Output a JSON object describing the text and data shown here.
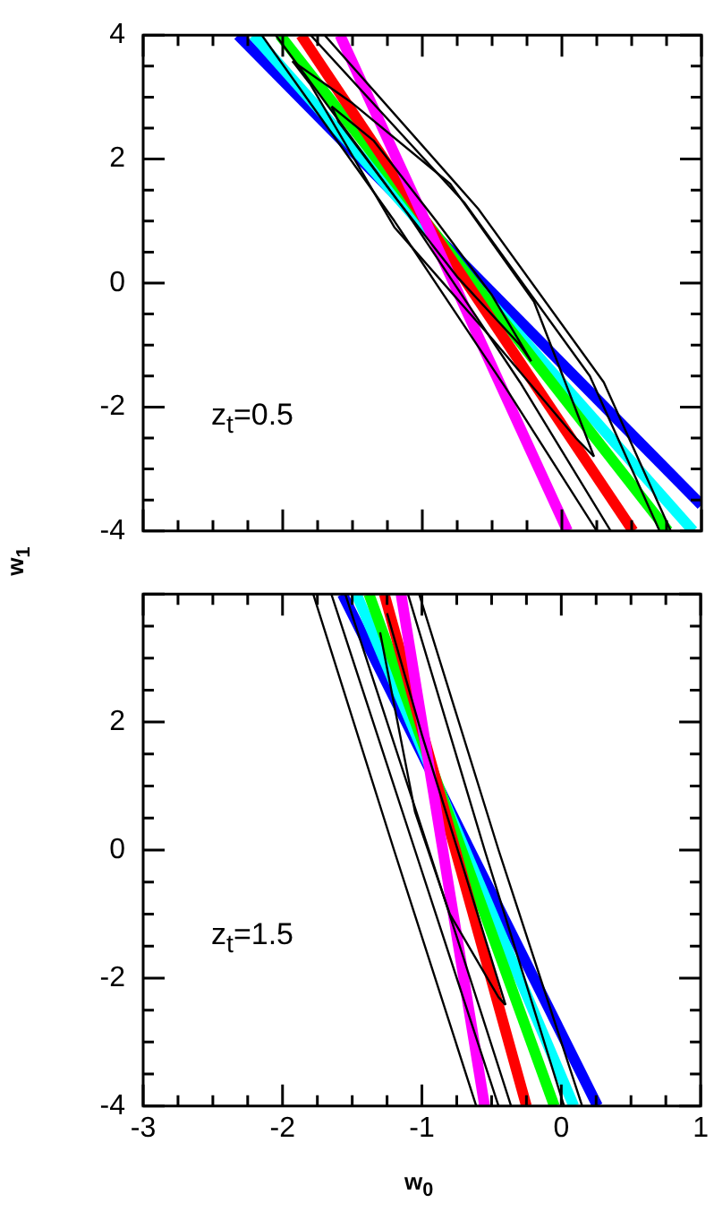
{
  "chart_data": [
    {
      "type": "line",
      "ylabel": "w$_{1}$",
      "annotations": [
        "z$_{t}$=0.5"
      ],
      "xlim": [
        -3,
        1
      ],
      "ylim": [
        -4,
        4
      ],
      "xticks": [
        -3,
        {
          "value": -2.75,
          "label": null
        },
        {
          "value": -2.5,
          "label": null
        },
        {
          "value": -2.25,
          "label": null
        },
        -2,
        {
          "value": -1.75,
          "label": null
        },
        {
          "value": -1.5,
          "label": null
        },
        {
          "value": -1.25,
          "label": null
        },
        -1,
        {
          "value": -0.75,
          "label": null
        },
        {
          "value": -0.5,
          "label": null
        },
        {
          "value": -0.25,
          "label": null
        },
        0,
        {
          "value": 0.25,
          "label": null
        },
        {
          "value": 0.5,
          "label": null
        },
        {
          "value": 0.75,
          "label": null
        },
        1
      ],
      "yticks": [
        -4,
        {
          "value": -3.5,
          "label": null
        },
        {
          "value": -3,
          "label": null
        },
        {
          "value": -2.5,
          "label": null
        },
        -2,
        {
          "value": -1.5,
          "label": null
        },
        {
          "value": -1,
          "label": null
        },
        {
          "value": -0.5,
          "label": null
        },
        0,
        {
          "value": 0.5,
          "label": null
        },
        {
          "value": 1,
          "label": null
        },
        {
          "value": 1.5,
          "label": null
        },
        2,
        {
          "value": 2.5,
          "label": null
        },
        {
          "value": 3,
          "label": null
        },
        {
          "value": 3.5,
          "label": null
        },
        4
      ],
      "tick_labels": "y",
      "grid": false,
      "legend": false,
      "marker": "none",
      "line_style": "solid",
      "series": [
        {
          "color": "#000000",
          "x": [
            -1.65,
            -1.35,
            -0.9,
            -0.5,
            -0.22
          ],
          "values": [
            2.85,
            2.3,
            1.0,
            -0.2,
            -1.26
          ]
        },
        {
          "color": "#000000",
          "x": [
            -1.65,
            -1.6,
            -1.2,
            -0.75,
            -0.3,
            -0.22
          ],
          "values": [
            2.85,
            2.6,
            1.4,
            0.1,
            -1.0,
            -1.26
          ]
        },
        {
          "color": "#000000",
          "x": [
            -1.93,
            -1.5,
            -0.8,
            -0.2,
            0.23
          ],
          "values": [
            3.58,
            2.9,
            1.6,
            -0.3,
            -2.8
          ]
        },
        {
          "color": "#000000",
          "x": [
            -1.93,
            -1.8,
            -1.2,
            -0.5,
            0.1,
            0.23
          ],
          "values": [
            3.58,
            3.2,
            0.9,
            -0.9,
            -2.5,
            -2.8
          ]
        },
        {
          "color": "#000000",
          "x": [
            -2.15,
            -1.2,
            -0.4,
            0.25
          ],
          "values": [
            4,
            1.0,
            -1.7,
            -4
          ]
        },
        {
          "color": "#000000",
          "x": [
            -2.05,
            -1.1,
            -0.3,
            0.35
          ],
          "values": [
            4,
            1.1,
            -1.6,
            -4
          ]
        },
        {
          "color": "#000000",
          "x": [
            -1.8,
            -0.7,
            0.2,
            0.7
          ],
          "values": [
            4,
            1.3,
            -1.5,
            -4
          ]
        },
        {
          "color": "#000000",
          "x": [
            -1.7,
            -0.6,
            0.3,
            0.78
          ],
          "values": [
            4,
            1.2,
            -1.6,
            -4
          ]
        },
        {
          "color": "#ff00ff",
          "x": [
            -1.59,
            0.04
          ],
          "values": [
            4,
            -4
          ]
        },
        {
          "color": "#ff0000",
          "x": [
            -1.87,
            0.51
          ],
          "values": [
            4,
            -4
          ]
        },
        {
          "color": "#00ff00",
          "x": [
            -2.02,
            0.76
          ],
          "values": [
            4,
            -4
          ]
        },
        {
          "color": "#00ffff",
          "x": [
            -2.21,
            0.94
          ],
          "values": [
            4,
            -4
          ]
        },
        {
          "color": "#0000ff",
          "x": [
            -2.32,
            1
          ],
          "values": [
            4,
            -3.58
          ]
        }
      ]
    },
    {
      "type": "line",
      "xlabel": "w$_{0}$",
      "annotations": [
        "z$_{t}$=1.5"
      ],
      "xlim": [
        -3,
        1
      ],
      "ylim": [
        -4,
        4
      ],
      "xticks": [
        -3,
        {
          "value": -2.75,
          "label": null
        },
        {
          "value": -2.5,
          "label": null
        },
        {
          "value": -2.25,
          "label": null
        },
        -2,
        {
          "value": -1.75,
          "label": null
        },
        {
          "value": -1.5,
          "label": null
        },
        {
          "value": -1.25,
          "label": null
        },
        -1,
        {
          "value": -0.75,
          "label": null
        },
        {
          "value": -0.5,
          "label": null
        },
        {
          "value": -0.25,
          "label": null
        },
        0,
        {
          "value": 0.25,
          "label": null
        },
        {
          "value": 0.5,
          "label": null
        },
        {
          "value": 0.75,
          "label": null
        },
        1
      ],
      "yticks": [
        -4,
        {
          "value": -3.5,
          "label": null
        },
        {
          "value": -3,
          "label": null
        },
        {
          "value": -2.5,
          "label": null
        },
        -2,
        {
          "value": -1.5,
          "label": null
        },
        {
          "value": -1,
          "label": null
        },
        {
          "value": -0.5,
          "label": null
        },
        0,
        {
          "value": 0.5,
          "label": null
        },
        {
          "value": 1,
          "label": null
        },
        {
          "value": 1.5,
          "label": null
        },
        2,
        {
          "value": 2.5,
          "label": null
        },
        {
          "value": 3,
          "label": null
        },
        {
          "value": 3.5,
          "label": null
        },
        {
          "value": 4,
          "label": null
        }
      ],
      "grid": false,
      "legend": false,
      "marker": "none",
      "line_style": "solid",
      "series": [
        {
          "color": "#000000",
          "x": [
            -1.25,
            -1.0,
            -0.7,
            -0.4
          ],
          "values": [
            3.7,
            1.8,
            -0.3,
            -2.42
          ]
        },
        {
          "color": "#000000",
          "x": [
            -1.3,
            -1.05,
            -0.8,
            -0.45,
            -0.4
          ],
          "values": [
            3.4,
            0.6,
            -1.0,
            -2.3,
            -2.42
          ]
        },
        {
          "color": "#000000",
          "x": [
            -1.78,
            -1.2,
            -0.61
          ],
          "values": [
            4,
            0,
            -4
          ]
        },
        {
          "color": "#000000",
          "x": [
            -1.65,
            -1.05,
            -0.45
          ],
          "values": [
            4,
            0,
            -4
          ]
        },
        {
          "color": "#000000",
          "x": [
            -1.55,
            -0.95,
            -0.36
          ],
          "values": [
            4,
            0,
            -4
          ]
        },
        {
          "color": "#000000",
          "x": [
            -1.1,
            -0.55,
            0.02
          ],
          "values": [
            4,
            0,
            -4
          ]
        },
        {
          "color": "#000000",
          "x": [
            -1.02,
            -0.45,
            0.15
          ],
          "values": [
            4,
            0,
            -4
          ]
        },
        {
          "color": "#ff00ff",
          "x": [
            -1.15,
            -0.55
          ],
          "values": [
            4,
            -4
          ]
        },
        {
          "color": "#ff0000",
          "x": [
            -1.27,
            -0.25
          ],
          "values": [
            4,
            -4
          ]
        },
        {
          "color": "#00ff00",
          "x": [
            -1.38,
            -0.05
          ],
          "values": [
            4,
            -4
          ]
        },
        {
          "color": "#00ffff",
          "x": [
            -1.47,
            0.09
          ],
          "values": [
            4,
            -4
          ]
        },
        {
          "color": "#0000ff",
          "x": [
            -1.57,
            0.26
          ],
          "values": [
            4,
            -4
          ]
        }
      ]
    }
  ]
}
